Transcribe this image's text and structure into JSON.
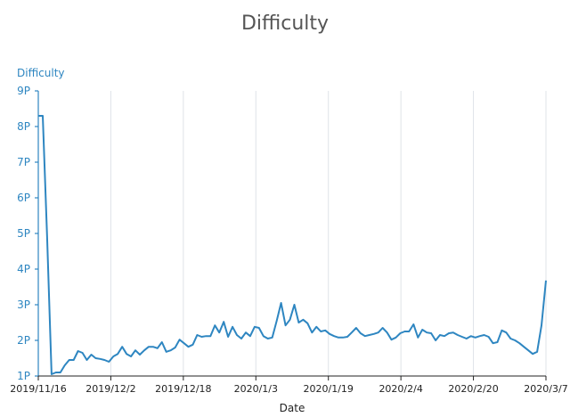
{
  "chart_data": {
    "type": "line",
    "title": "Difficulty",
    "ylabel": "Difficulty",
    "xlabel": "Date",
    "ylim": [
      1,
      9
    ],
    "y_unit": "P",
    "y_ticks": [
      "1P",
      "2P",
      "3P",
      "4P",
      "5P",
      "6P",
      "7P",
      "8P",
      "9P"
    ],
    "x_tick_labels": [
      "2019/11/16",
      "2019/12/2",
      "2019/12/18",
      "2020/1/3",
      "2020/1/19",
      "2020/2/4",
      "2020/2/20",
      "2020/3/7"
    ],
    "grid": "vertical",
    "legend": "none",
    "colors": {
      "series": "#2e86c1",
      "title": "#555555",
      "axis_text": "#222222"
    },
    "series": [
      {
        "values": [
          8.3,
          8.3,
          4.9,
          1.05,
          1.1,
          1.1,
          1.3,
          1.45,
          1.45,
          1.7,
          1.65,
          1.45,
          1.6,
          1.5,
          1.48,
          1.45,
          1.4,
          1.55,
          1.62,
          1.82,
          1.62,
          1.55,
          1.72,
          1.6,
          1.72,
          1.82,
          1.82,
          1.78,
          1.95,
          1.68,
          1.72,
          1.8,
          2.02,
          1.92,
          1.82,
          1.88,
          2.15,
          2.1,
          2.12,
          2.12,
          2.42,
          2.22,
          2.52,
          2.1,
          2.38,
          2.15,
          2.05,
          2.22,
          2.12,
          2.38,
          2.35,
          2.12,
          2.05,
          2.08,
          2.55,
          3.05,
          2.42,
          2.58,
          3.0,
          2.5,
          2.58,
          2.48,
          2.22,
          2.38,
          2.25,
          2.28,
          2.18,
          2.12,
          2.08,
          2.08,
          2.1,
          2.22,
          2.35,
          2.2,
          2.12,
          2.15,
          2.18,
          2.22,
          2.35,
          2.22,
          2.02,
          2.08,
          2.2,
          2.25,
          2.25,
          2.45,
          2.08,
          2.3,
          2.22,
          2.2,
          2.0,
          2.15,
          2.12,
          2.2,
          2.22,
          2.15,
          2.1,
          2.05,
          2.12,
          2.08,
          2.12,
          2.15,
          2.1,
          1.92,
          1.95,
          2.28,
          2.22,
          2.05,
          2.0,
          1.92,
          1.82,
          1.72,
          1.62,
          1.68,
          2.42,
          3.68
        ]
      }
    ]
  }
}
